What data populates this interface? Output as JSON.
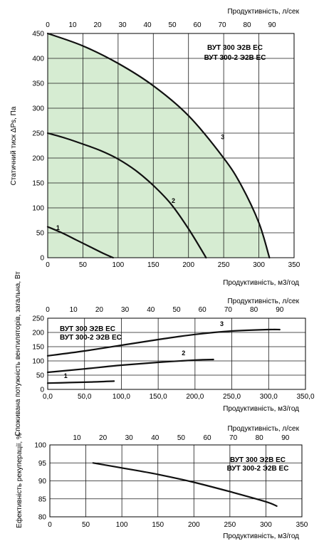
{
  "chart_data": [
    {
      "type": "line",
      "top_axis_label": "Продуктивність, л/сек",
      "top_ticks": [
        "0",
        "10",
        "20",
        "30",
        "40",
        "50",
        "60",
        "70",
        "80",
        "90"
      ],
      "xlabel": "Продуктивність, м3/год",
      "ylabel": "Статичний тиск ΔPs, Па",
      "x_ticks": [
        "0",
        "50",
        "100",
        "150",
        "200",
        "250",
        "300",
        "350"
      ],
      "y_ticks": [
        "0",
        "50",
        "100",
        "150",
        "200",
        "250",
        "300",
        "350",
        "400",
        "450"
      ],
      "xlim": [
        0,
        350
      ],
      "ylim": [
        0,
        450
      ],
      "models": [
        "ВУТ 300 Э2В ЕС",
        "ВУТ 300-2 Э2В ЕС"
      ],
      "shaded_area": "#d6ecd2",
      "series": [
        {
          "name": "1",
          "x": [
            0,
            20,
            40,
            60,
            80,
            93
          ],
          "y": [
            62,
            50,
            36,
            22,
            8,
            0
          ]
        },
        {
          "name": "2",
          "x": [
            0,
            25,
            50,
            75,
            100,
            125,
            150,
            175,
            200,
            225
          ],
          "y": [
            250,
            240,
            228,
            215,
            198,
            175,
            145,
            108,
            58,
            0
          ]
        },
        {
          "name": "3",
          "x": [
            0,
            50,
            100,
            150,
            200,
            250,
            275,
            300,
            315
          ],
          "y": [
            450,
            425,
            390,
            345,
            285,
            200,
            145,
            70,
            0
          ]
        }
      ]
    },
    {
      "type": "line",
      "top_axis_label": "Продуктивність, л/сек",
      "top_ticks": [
        "0",
        "10",
        "20",
        "30",
        "40",
        "50",
        "60",
        "70",
        "80",
        "90"
      ],
      "xlabel": "Продуктивність, м3/год",
      "ylabel": "Споживана потужність вентиляторів, загальна, Вт",
      "x_ticks": [
        "0,0",
        "50,0",
        "100,0",
        "150,0",
        "200,0",
        "250,0",
        "300,0",
        "350,0"
      ],
      "y_ticks": [
        "0",
        "50",
        "100",
        "150",
        "200",
        "250"
      ],
      "xlim": [
        0,
        350
      ],
      "ylim": [
        0,
        250
      ],
      "models": [
        "ВУТ 300 Э2В ЕС",
        "ВУТ 300-2 Э2В ЕС"
      ],
      "series": [
        {
          "name": "1",
          "x": [
            0,
            30,
            60,
            90
          ],
          "y": [
            22,
            24,
            26,
            29
          ]
        },
        {
          "name": "2",
          "x": [
            0,
            50,
            100,
            150,
            200,
            225
          ],
          "y": [
            60,
            72,
            85,
            95,
            103,
            105
          ]
        },
        {
          "name": "3",
          "x": [
            0,
            50,
            100,
            150,
            200,
            250,
            300,
            315
          ],
          "y": [
            118,
            135,
            155,
            175,
            193,
            205,
            210,
            210
          ]
        }
      ]
    },
    {
      "type": "line",
      "top_axis_label": "Продуктивність, л/сек",
      "top_ticks": [
        "10",
        "20",
        "30",
        "40",
        "50",
        "60",
        "70",
        "80",
        "90"
      ],
      "xlabel": "Продуктивність, м3/год",
      "ylabel": "Ефективність рекуперації, %",
      "x_ticks": [
        "0",
        "50",
        "100",
        "150",
        "200",
        "250",
        "300",
        "350"
      ],
      "y_ticks": [
        "80",
        "85",
        "90",
        "95",
        "100"
      ],
      "xlim": [
        0,
        350
      ],
      "ylim": [
        80,
        100
      ],
      "models": [
        "ВУТ 300 Э2В ЕС",
        "ВУТ 300-2 Э2В ЕС"
      ],
      "series": [
        {
          "x": [
            60,
            100,
            150,
            200,
            250,
            300,
            315
          ],
          "y": [
            95,
            93.6,
            91.8,
            89.6,
            87,
            84.2,
            83
          ]
        }
      ]
    }
  ]
}
